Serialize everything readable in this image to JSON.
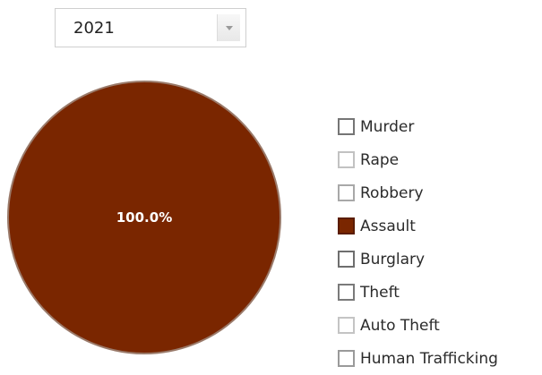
{
  "year_select": {
    "value": "2021"
  },
  "chart_data": {
    "type": "pie",
    "title": "",
    "categories": [
      "Murder",
      "Rape",
      "Robbery",
      "Assault",
      "Burglary",
      "Theft",
      "Auto Theft",
      "Human Trafficking"
    ],
    "values": [
      0,
      0,
      0,
      100,
      0,
      0,
      0,
      0
    ],
    "slice_labels": [
      {
        "category": "Assault",
        "text": "100.0%"
      }
    ],
    "legend": {
      "position": "right",
      "items": [
        {
          "label": "Murder",
          "active": false,
          "color": "#ffffff",
          "border": "#757575"
        },
        {
          "label": "Rape",
          "active": false,
          "color": "#ffffff",
          "border": "#c2c2c2"
        },
        {
          "label": "Robbery",
          "active": false,
          "color": "#ffffff",
          "border": "#a8a8a8"
        },
        {
          "label": "Assault",
          "active": true,
          "color": "#7a2600",
          "border": "#5a1c00"
        },
        {
          "label": "Burglary",
          "active": false,
          "color": "#ffffff",
          "border": "#6e6e6e"
        },
        {
          "label": "Theft",
          "active": false,
          "color": "#ffffff",
          "border": "#7a7a7a"
        },
        {
          "label": "Auto Theft",
          "active": false,
          "color": "#ffffff",
          "border": "#c4c4c4"
        },
        {
          "label": "Human Trafficking",
          "active": false,
          "color": "#ffffff",
          "border": "#9a9a9a"
        }
      ]
    },
    "colors": {
      "slice": "#7a2600",
      "slice_border": "#9a7a6a",
      "label_text": "#ffffff"
    }
  }
}
